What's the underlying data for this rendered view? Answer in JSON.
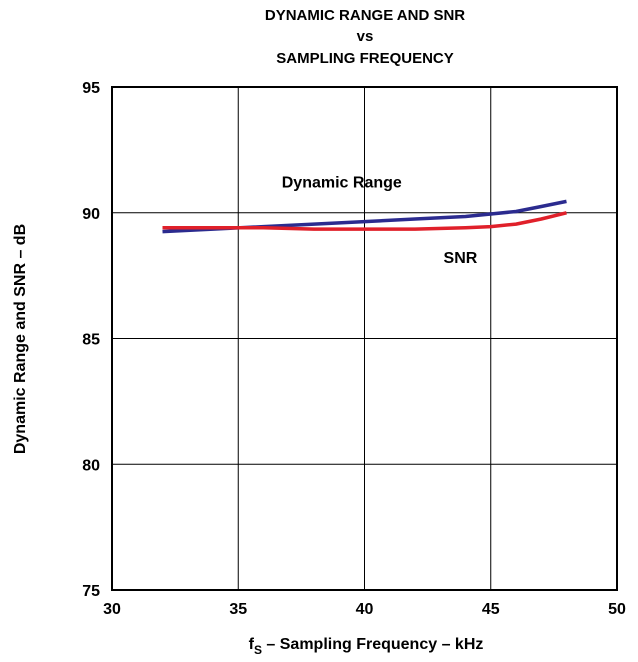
{
  "chart_data": {
    "type": "line",
    "title_lines": [
      "DYNAMIC RANGE AND SNR",
      "vs",
      "SAMPLING FREQUENCY"
    ],
    "xlabel": {
      "main": "f",
      "sub": "S",
      "rest": " – Sampling Frequency – kHz"
    },
    "ylabel": "Dynamic Range and SNR – dB",
    "xlim": [
      30,
      50
    ],
    "ylim": [
      75,
      95
    ],
    "x_ticks": [
      30,
      35,
      40,
      45,
      50
    ],
    "y_ticks": [
      75,
      80,
      85,
      90,
      95
    ],
    "grid": true,
    "series": [
      {
        "name": "Dynamic Range",
        "color": "#2b2b8f",
        "x": [
          32,
          34,
          36,
          38,
          40,
          42,
          44,
          45,
          46,
          47,
          48
        ],
        "y": [
          89.25,
          89.35,
          89.45,
          89.55,
          89.65,
          89.75,
          89.85,
          89.95,
          90.05,
          90.25,
          90.45
        ]
      },
      {
        "name": "SNR",
        "color": "#e0202a",
        "x": [
          32,
          34,
          36,
          38,
          40,
          42,
          44,
          45,
          46,
          47,
          48
        ],
        "y": [
          89.4,
          89.4,
          89.4,
          89.35,
          89.35,
          89.35,
          89.4,
          89.45,
          89.55,
          89.75,
          90.0
        ]
      }
    ],
    "annotations": [
      {
        "text": "Dynamic Range",
        "x": 39.1,
        "y": 91.0
      },
      {
        "text": "SNR",
        "x": 43.8,
        "y": 88.0
      }
    ]
  }
}
